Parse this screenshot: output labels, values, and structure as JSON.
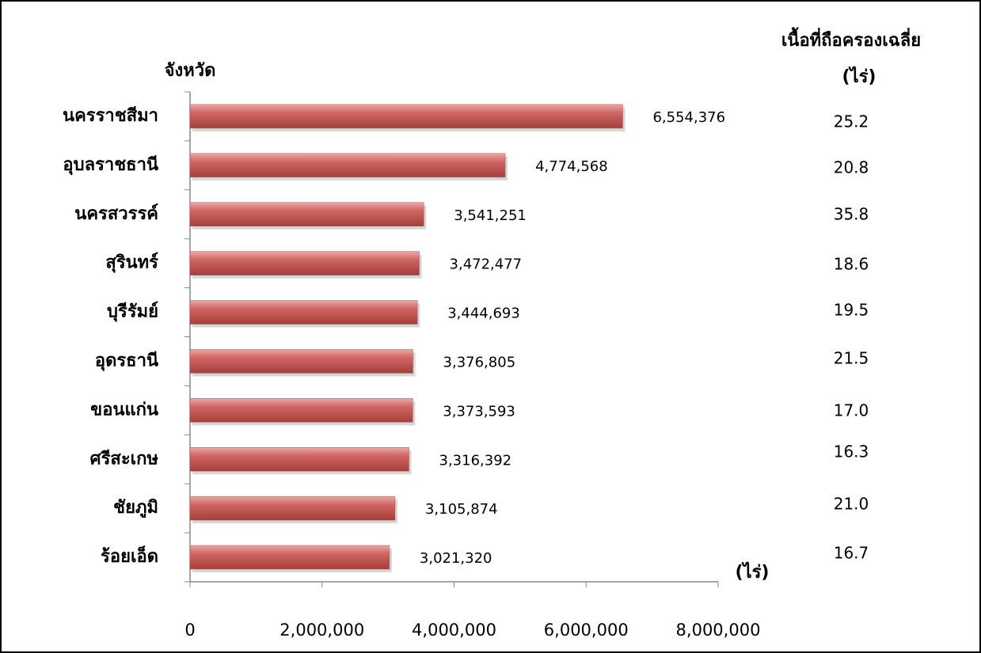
{
  "chart_data": {
    "type": "bar",
    "orientation": "horizontal",
    "y_axis_title": "จังหวัด",
    "x_unit": "(ไร่)",
    "categories": [
      "นครราชสีมา",
      "อุบลราชธานี",
      "นครสวรรค์",
      "สุรินทร์",
      "บุรีรัมย์",
      "อุดรธานี",
      "ขอนแก่น",
      "ศรีสะเกษ",
      "ชัยภูมิ",
      "ร้อยเอ็ด"
    ],
    "values": [
      6554376,
      4774568,
      3541251,
      3472477,
      3444693,
      3376805,
      3373593,
      3316392,
      3105874,
      3021320
    ],
    "value_labels": [
      "6,554,376",
      "4,774,568",
      "3,541,251",
      "3,472,477",
      "3,444,693",
      "3,376,805",
      "3,373,593",
      "3,316,392",
      "3,105,874",
      "3,021,320"
    ],
    "color": "#c0504d",
    "xlim": [
      0,
      8000000
    ],
    "xticks": [
      0,
      {
        "value": 2000000,
        "label": "2,000,000"
      },
      {
        "value": 4000000,
        "label": "4,000,000"
      },
      {
        "value": 6000000,
        "label": "6,000,000"
      },
      {
        "value": 8000000,
        "label": "8,000,000"
      }
    ],
    "side_column": {
      "title": "เนื้อที่ถือครองเฉลี่ย",
      "unit": "(ไร่)",
      "labels": [
        "25.2",
        "20.8",
        "35.8",
        "18.6",
        "19.5",
        "21.5",
        "17.0",
        "16.3",
        "21.0",
        "16.7"
      ]
    }
  }
}
